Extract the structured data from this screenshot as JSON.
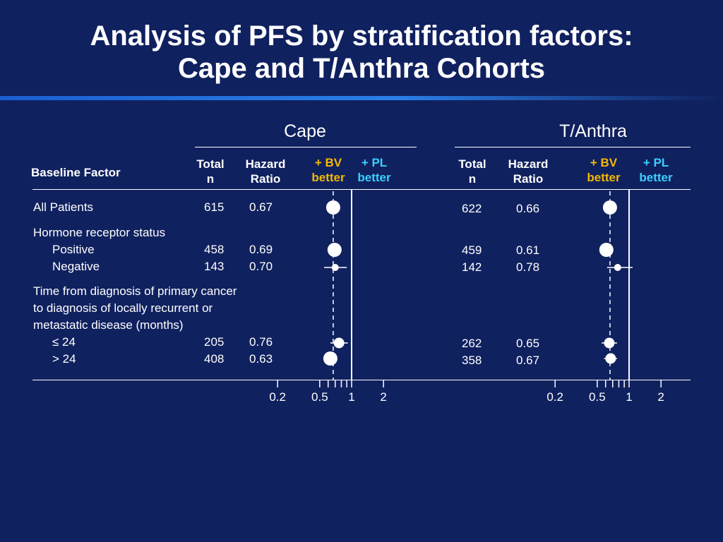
{
  "title_line1": "Analysis of PFS by stratification factors:",
  "title_line2": "Cape and T/Anthra Cohorts",
  "headers": {
    "baseline_factor": "Baseline Factor",
    "total_line1": "Total",
    "total_line2": "n",
    "hr_line1": "Hazard",
    "hr_line2": "Ratio",
    "bv_line1": "+ BV",
    "bv_line2": "better",
    "pl_line1": "+ PL",
    "pl_line2": "better"
  },
  "factor_labels": {
    "all": "All Patients",
    "hormone": "Hormone receptor status",
    "positive": "Positive",
    "negative": "Negative",
    "time_line1": "Time from diagnosis of primary cancer",
    "time_line2": "to diagnosis of locally recurrent or",
    "time_line3": "metastatic disease (months)",
    "le24": "≤ 24",
    "gt24": "> 24"
  },
  "colors": {
    "background": "#10215f",
    "bv": "#f5b800",
    "pl": "#39d0ff",
    "accent_bar": "#2a7fe8"
  },
  "chart_data": [
    {
      "type": "scatter",
      "subtype": "forest-plot",
      "cohort": "Cape",
      "x_scale": "log",
      "reference_line": 1,
      "x_ticks": [
        0.2,
        0.5,
        1,
        2
      ],
      "x_tick_labels": [
        "0.2",
        "0.5",
        "1",
        "2"
      ],
      "rows": [
        {
          "key": "all",
          "n": "615",
          "hr": "0.67",
          "hr_value": 0.67,
          "ci": [
            0.61,
            0.74
          ],
          "size": "large"
        },
        {
          "key": "positive",
          "n": "458",
          "hr": "0.69",
          "hr_value": 0.69,
          "ci": [
            0.61,
            0.78
          ],
          "size": "large"
        },
        {
          "key": "negative",
          "n": "143",
          "hr": "0.70",
          "hr_value": 0.7,
          "ci": [
            0.55,
            0.9
          ],
          "size": "small"
        },
        {
          "key": "le24",
          "n": "205",
          "hr": "0.76",
          "hr_value": 0.76,
          "ci": [
            0.63,
            0.92
          ],
          "size": "medium"
        },
        {
          "key": "gt24",
          "n": "408",
          "hr": "0.63",
          "hr_value": 0.63,
          "ci": [
            0.55,
            0.73
          ],
          "size": "large"
        }
      ]
    },
    {
      "type": "scatter",
      "subtype": "forest-plot",
      "cohort": "T/Anthra",
      "x_scale": "log",
      "reference_line": 1,
      "x_ticks": [
        0.2,
        0.5,
        1,
        2
      ],
      "x_tick_labels": [
        "0.2",
        "0.5",
        "1",
        "2"
      ],
      "rows": [
        {
          "key": "all",
          "n": "622",
          "hr": "0.66",
          "hr_value": 0.66,
          "ci": [
            0.61,
            0.72
          ],
          "size": "large"
        },
        {
          "key": "positive",
          "n": "459",
          "hr": "0.61",
          "hr_value": 0.61,
          "ci": [
            0.53,
            0.71
          ],
          "size": "large"
        },
        {
          "key": "negative",
          "n": "142",
          "hr": "0.78",
          "hr_value": 0.78,
          "ci": [
            0.62,
            1.08
          ],
          "size": "small"
        },
        {
          "key": "le24",
          "n": "262",
          "hr": "0.65",
          "hr_value": 0.65,
          "ci": [
            0.55,
            0.77
          ],
          "size": "medium"
        },
        {
          "key": "gt24",
          "n": "358",
          "hr": "0.67",
          "hr_value": 0.67,
          "ci": [
            0.58,
            0.77
          ],
          "size": "medium"
        }
      ]
    }
  ]
}
